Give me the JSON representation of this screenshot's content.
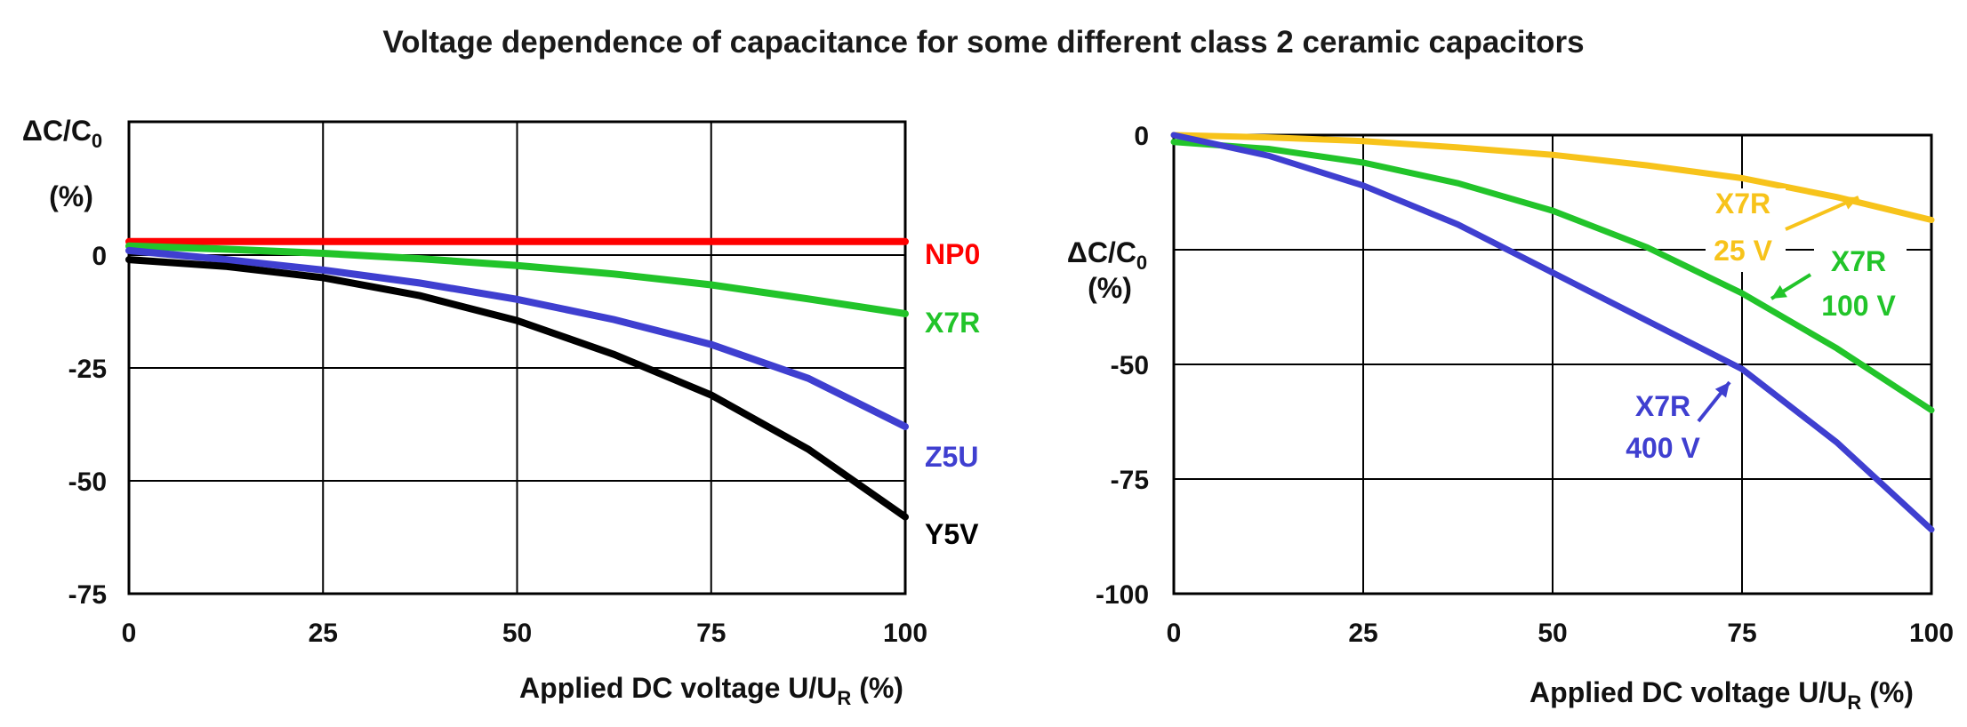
{
  "figure_title": "Voltage dependence of capacitance for some different class 2 ceramic capacitors",
  "chart_data": [
    {
      "type": "line",
      "title": "",
      "xlabel": {
        "main": "Applied DC voltage U/U",
        "sub": "R",
        "unit": "(%)"
      },
      "ylabel": {
        "main": "ΔC/C",
        "sub": "0",
        "unit": "(%)"
      },
      "xlim": [
        0,
        100
      ],
      "ylim": [
        -75,
        25
      ],
      "x_ticks": [
        "0",
        "25",
        "50",
        "75",
        "100"
      ],
      "y_ticks": [
        "0",
        "-25",
        "-50",
        "-75"
      ],
      "grid": true,
      "series": [
        {
          "name": "NP0",
          "color": "#ff0000",
          "x": [
            0,
            25,
            50,
            75,
            100
          ],
          "y": [
            3,
            3,
            3,
            3,
            3
          ]
        },
        {
          "name": "X7R",
          "color": "#22c42a",
          "x": [
            0,
            12.5,
            25,
            37.5,
            50,
            62.5,
            75,
            87.5,
            100
          ],
          "y": [
            2,
            1.3,
            0.4,
            -0.8,
            -2.3,
            -4.2,
            -6.6,
            -9.7,
            -13
          ]
        },
        {
          "name": "Z5U",
          "color": "#3f3fd0",
          "x": [
            0,
            12.5,
            25,
            37.5,
            50,
            62.5,
            75,
            87.5,
            100
          ],
          "y": [
            1,
            -1,
            -3.3,
            -6.2,
            -9.8,
            -14.3,
            -19.8,
            -27.3,
            -38
          ]
        },
        {
          "name": "Y5V",
          "color": "#000000",
          "x": [
            0,
            12.5,
            25,
            37.5,
            50,
            62.5,
            75,
            87.5,
            100
          ],
          "y": [
            -1,
            -2.5,
            -5,
            -9,
            -14.5,
            -22,
            -31,
            -43,
            -58
          ]
        }
      ]
    },
    {
      "type": "line",
      "title": "",
      "xlabel": {
        "main": "Applied DC voltage U/U",
        "sub": "R",
        "unit": "(%)"
      },
      "ylabel": {
        "main": "ΔC/C",
        "sub": "0",
        "unit": "(%)"
      },
      "xlim": [
        0,
        100
      ],
      "ylim": [
        -100,
        0
      ],
      "x_ticks": [
        "0",
        "25",
        "50",
        "75",
        "100"
      ],
      "y_ticks": [
        "0",
        "-50",
        "-75",
        "-100"
      ],
      "grid": true,
      "series": [
        {
          "name": "X7R 25 V",
          "label_lines": [
            "X7R",
            "25 V"
          ],
          "color": "#f7c31b",
          "x": [
            0,
            12.5,
            25,
            37.5,
            50,
            62.5,
            75,
            87.5,
            100
          ],
          "y": [
            0,
            -0.5,
            -1.3,
            -2.7,
            -4.3,
            -6.6,
            -9.4,
            -13.5,
            -18.5
          ]
        },
        {
          "name": "X7R 100 V",
          "label_lines": [
            "X7R",
            "100 V"
          ],
          "color": "#22c42a",
          "x": [
            0,
            12.5,
            25,
            37.5,
            50,
            62.5,
            75,
            87.5,
            100
          ],
          "y": [
            -1.5,
            -3,
            -6,
            -10.5,
            -16.5,
            -24.5,
            -34.5,
            -46.5,
            -60
          ]
        },
        {
          "name": "X7R 400 V",
          "label_lines": [
            "X7R",
            "400 V"
          ],
          "color": "#3f3fd0",
          "x": [
            0,
            12.5,
            25,
            37.5,
            50,
            62.5,
            75,
            87.5,
            100
          ],
          "y": [
            0,
            -4.5,
            -11,
            -19.5,
            -30,
            -40.5,
            -51,
            -67,
            -86
          ]
        }
      ]
    }
  ]
}
